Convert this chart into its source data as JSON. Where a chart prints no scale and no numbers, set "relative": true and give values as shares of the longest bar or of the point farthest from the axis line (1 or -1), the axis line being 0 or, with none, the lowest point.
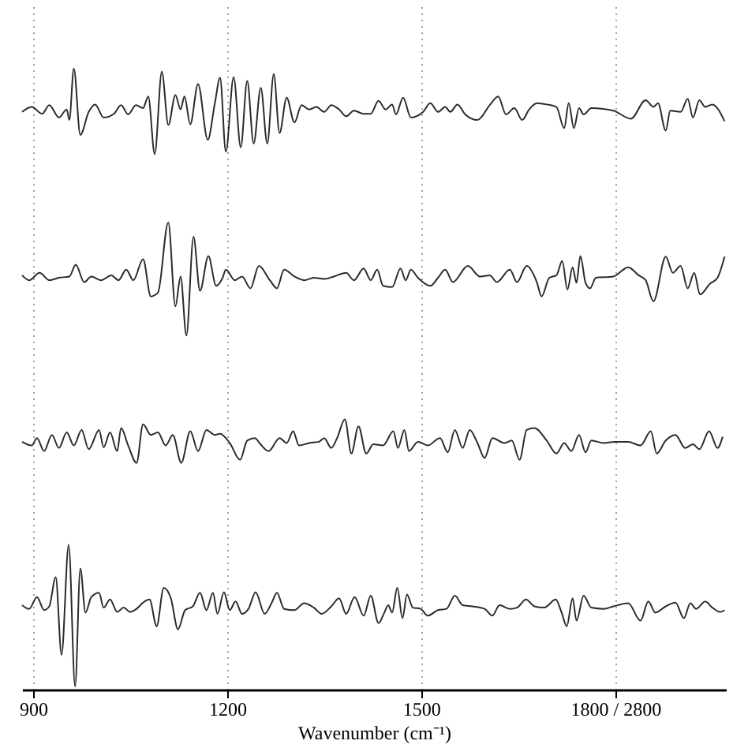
{
  "chart_data": {
    "type": "line",
    "relative": true,
    "xlabel": "Wavenumber (cm⁻¹)",
    "xlim": [
      883,
      1971
    ],
    "xticks": [
      900,
      1200,
      1500,
      {
        "value": 1800,
        "label": "1800 / 2800"
      }
    ],
    "grid": "x",
    "tick_labels": "x",
    "line_style": "solid",
    "marker": "none",
    "series": [
      {
        "color": "#2b2b2b",
        "x": [
          883,
          898,
          914,
          925,
          940,
          952,
          956,
          963,
          973,
          986,
          996,
          1009,
          1025,
          1036,
          1047,
          1059,
          1070,
          1078,
          1088,
          1099,
          1109,
          1120,
          1128,
          1134,
          1143,
          1155,
          1170,
          1181,
          1189,
          1198,
          1210,
          1221,
          1231,
          1241,
          1252,
          1262,
          1272,
          1281,
          1292,
          1304,
          1315,
          1327,
          1338,
          1350,
          1361,
          1373,
          1384,
          1396,
          1411,
          1422,
          1434,
          1445,
          1455,
          1461,
          1472,
          1484,
          1503,
          1514,
          1526,
          1537,
          1545,
          1556,
          1568,
          1587,
          1606,
          1619,
          1631,
          1644,
          1656,
          1667,
          1679,
          1694,
          1709,
          1721,
          1728,
          1736,
          1744,
          1751,
          1763,
          1797,
          1824,
          1847,
          1859,
          1866,
          1878,
          1885,
          1901,
          1912,
          1920,
          1930,
          1939,
          1950,
          1969
        ],
        "values": [
          0.93,
          0.938,
          0.927,
          0.941,
          0.921,
          0.934,
          0.917,
          1.0,
          0.893,
          0.93,
          0.942,
          0.921,
          0.927,
          0.941,
          0.926,
          0.941,
          0.936,
          0.955,
          0.862,
          0.995,
          0.909,
          0.957,
          0.934,
          0.955,
          0.91,
          0.975,
          0.885,
          0.944,
          0.985,
          0.866,
          0.986,
          0.873,
          0.98,
          0.879,
          0.969,
          0.879,
          0.991,
          0.896,
          0.953,
          0.913,
          0.941,
          0.934,
          0.938,
          0.93,
          0.941,
          0.934,
          0.923,
          0.932,
          0.927,
          0.927,
          0.948,
          0.934,
          0.942,
          0.926,
          0.953,
          0.921,
          0.93,
          0.944,
          0.93,
          0.938,
          0.93,
          0.942,
          0.926,
          0.917,
          0.941,
          0.955,
          0.926,
          0.936,
          0.917,
          0.934,
          0.944,
          0.942,
          0.938,
          0.904,
          0.944,
          0.904,
          0.936,
          0.926,
          0.936,
          0.932,
          0.919,
          0.949,
          0.938,
          0.944,
          0.9,
          0.932,
          0.93,
          0.951,
          0.921,
          0.949,
          0.938,
          0.942,
          0.915
        ]
      },
      {
        "color": "#2b2b2b",
        "x": [
          883,
          894,
          910,
          925,
          940,
          956,
          966,
          979,
          990,
          1005,
          1021,
          1032,
          1044,
          1055,
          1070,
          1082,
          1093,
          1109,
          1120,
          1128,
          1137,
          1148,
          1158,
          1171,
          1183,
          1193,
          1198,
          1212,
          1223,
          1236,
          1249,
          1266,
          1277,
          1288,
          1304,
          1319,
          1334,
          1350,
          1365,
          1384,
          1396,
          1411,
          1422,
          1432,
          1441,
          1455,
          1468,
          1476,
          1484,
          1495,
          1514,
          1526,
          1537,
          1549,
          1572,
          1591,
          1606,
          1617,
          1637,
          1648,
          1663,
          1679,
          1686,
          1698,
          1709,
          1718,
          1726,
          1734,
          1740,
          1746,
          1754,
          1761,
          1770,
          1797,
          1820,
          1836,
          1847,
          1859,
          1878,
          1889,
          1901,
          1912,
          1922,
          1931,
          1946,
          1958,
          1969
        ],
        "values": [
          0.667,
          0.659,
          0.671,
          0.659,
          0.663,
          0.665,
          0.684,
          0.656,
          0.665,
          0.659,
          0.667,
          0.659,
          0.676,
          0.659,
          0.693,
          0.633,
          0.639,
          0.752,
          0.617,
          0.665,
          0.57,
          0.729,
          0.642,
          0.698,
          0.65,
          0.663,
          0.676,
          0.659,
          0.665,
          0.646,
          0.682,
          0.659,
          0.646,
          0.676,
          0.665,
          0.659,
          0.663,
          0.661,
          0.665,
          0.671,
          0.659,
          0.678,
          0.659,
          0.676,
          0.65,
          0.648,
          0.678,
          0.659,
          0.676,
          0.663,
          0.65,
          0.663,
          0.676,
          0.656,
          0.682,
          0.665,
          0.667,
          0.656,
          0.676,
          0.656,
          0.682,
          0.655,
          0.633,
          0.663,
          0.667,
          0.69,
          0.644,
          0.68,
          0.655,
          0.698,
          0.655,
          0.646,
          0.663,
          0.665,
          0.68,
          0.667,
          0.659,
          0.625,
          0.697,
          0.671,
          0.682,
          0.646,
          0.671,
          0.636,
          0.653,
          0.663,
          0.697
        ]
      },
      {
        "color": "#2b2b2b",
        "x": [
          883,
          898,
          906,
          917,
          929,
          940,
          952,
          963,
          975,
          986,
          1002,
          1009,
          1019,
          1030,
          1036,
          1047,
          1060,
          1070,
          1082,
          1093,
          1105,
          1116,
          1129,
          1143,
          1155,
          1168,
          1181,
          1189,
          1204,
          1220,
          1231,
          1243,
          1250,
          1264,
          1281,
          1292,
          1302,
          1311,
          1327,
          1342,
          1350,
          1361,
          1370,
          1382,
          1392,
          1403,
          1415,
          1426,
          1441,
          1457,
          1464,
          1474,
          1481,
          1495,
          1510,
          1529,
          1541,
          1552,
          1564,
          1575,
          1587,
          1598,
          1610,
          1629,
          1640,
          1652,
          1663,
          1675,
          1694,
          1709,
          1721,
          1732,
          1744,
          1754,
          1763,
          1782,
          1799,
          1820,
          1839,
          1855,
          1864,
          1878,
          1893,
          1908,
          1920,
          1930,
          1945,
          1958,
          1966
        ],
        "values": [
          0.399,
          0.393,
          0.405,
          0.384,
          0.41,
          0.389,
          0.414,
          0.393,
          0.418,
          0.387,
          0.418,
          0.39,
          0.414,
          0.384,
          0.421,
          0.393,
          0.365,
          0.427,
          0.41,
          0.414,
          0.393,
          0.41,
          0.365,
          0.416,
          0.384,
          0.418,
          0.41,
          0.412,
          0.397,
          0.37,
          0.401,
          0.405,
          0.397,
          0.384,
          0.405,
          0.397,
          0.416,
          0.393,
          0.397,
          0.399,
          0.405,
          0.389,
          0.405,
          0.435,
          0.38,
          0.424,
          0.38,
          0.395,
          0.393,
          0.416,
          0.389,
          0.418,
          0.384,
          0.399,
          0.393,
          0.405,
          0.382,
          0.418,
          0.389,
          0.418,
          0.397,
          0.373,
          0.405,
          0.397,
          0.401,
          0.37,
          0.418,
          0.421,
          0.401,
          0.38,
          0.397,
          0.384,
          0.41,
          0.382,
          0.401,
          0.397,
          0.399,
          0.399,
          0.393,
          0.416,
          0.38,
          0.401,
          0.41,
          0.389,
          0.395,
          0.387,
          0.416,
          0.389,
          0.407
        ]
      },
      {
        "color": "#2b2b2b",
        "x": [
          883,
          894,
          906,
          917,
          925,
          935,
          944,
          955,
          965,
          973,
          981,
          990,
          1002,
          1009,
          1019,
          1030,
          1040,
          1050,
          1060,
          1070,
          1080,
          1091,
          1102,
          1113,
          1124,
          1135,
          1147,
          1158,
          1168,
          1178,
          1185,
          1195,
          1204,
          1213,
          1223,
          1233,
          1244,
          1258,
          1269,
          1277,
          1288,
          1304,
          1319,
          1334,
          1346,
          1361,
          1373,
          1384,
          1397,
          1411,
          1422,
          1434,
          1443,
          1449,
          1455,
          1463,
          1471,
          1478,
          1487,
          1499,
          1510,
          1526,
          1539,
          1552,
          1564,
          1579,
          1598,
          1610,
          1621,
          1637,
          1648,
          1662,
          1675,
          1690,
          1708,
          1717,
          1725,
          1734,
          1740,
          1751,
          1763,
          1782,
          1797,
          1820,
          1839,
          1851,
          1862,
          1878,
          1893,
          1906,
          1916,
          1925,
          1939,
          1950,
          1962,
          1969
        ],
        "values": [
          0.136,
          0.13,
          0.149,
          0.128,
          0.134,
          0.181,
          0.056,
          0.233,
          0.005,
          0.195,
          0.124,
          0.149,
          0.156,
          0.132,
          0.145,
          0.125,
          0.132,
          0.125,
          0.13,
          0.14,
          0.145,
          0.102,
          0.164,
          0.147,
          0.097,
          0.128,
          0.134,
          0.156,
          0.128,
          0.156,
          0.122,
          0.157,
          0.128,
          0.142,
          0.122,
          0.13,
          0.157,
          0.122,
          0.14,
          0.156,
          0.13,
          0.128,
          0.139,
          0.132,
          0.122,
          0.134,
          0.147,
          0.122,
          0.149,
          0.119,
          0.151,
          0.107,
          0.124,
          0.136,
          0.124,
          0.164,
          0.115,
          0.153,
          0.132,
          0.13,
          0.119,
          0.128,
          0.13,
          0.151,
          0.136,
          0.134,
          0.13,
          0.119,
          0.136,
          0.13,
          0.132,
          0.145,
          0.134,
          0.132,
          0.145,
          0.124,
          0.102,
          0.147,
          0.111,
          0.151,
          0.132,
          0.13,
          0.134,
          0.139,
          0.111,
          0.142,
          0.124,
          0.134,
          0.14,
          0.115,
          0.139,
          0.13,
          0.142,
          0.132,
          0.125,
          0.128
        ]
      }
    ]
  }
}
